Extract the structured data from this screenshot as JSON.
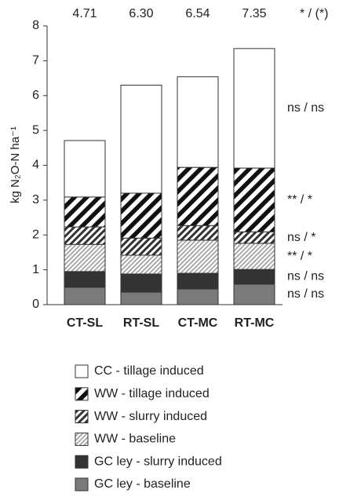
{
  "chart_data": {
    "type": "stacked-bar",
    "ylabel": "kg N₂O-N ha⁻¹",
    "categories": [
      "CT-SL",
      "RT-SL",
      "CT-MC",
      "RT-MC"
    ],
    "totals": [
      4.71,
      6.3,
      6.54,
      7.35
    ],
    "total_labels": [
      "4.71",
      "6.30",
      "6.54",
      "7.35"
    ],
    "total_significance": "* / (*)",
    "ylim": [
      0,
      8
    ],
    "yticks": [
      0,
      1,
      2,
      3,
      4,
      5,
      6,
      7,
      8
    ],
    "series": [
      {
        "name": "GC ley - baseline",
        "color": "#7a7a7a",
        "hatch": "none",
        "significance": "ns / ns",
        "values": [
          0.5,
          0.36,
          0.45,
          0.59
        ]
      },
      {
        "name": "GC ley - slurry induced",
        "color": "#333333",
        "hatch": "none",
        "significance": "ns / ns",
        "values": [
          0.45,
          0.52,
          0.45,
          0.42
        ]
      },
      {
        "name": "WW - baseline",
        "color": "#9a9a9a",
        "hatch": "fine",
        "significance": "** / *",
        "values": [
          0.78,
          0.54,
          0.95,
          0.75
        ]
      },
      {
        "name": "WW - slurry induced",
        "color": "#333333",
        "hatch": "dense",
        "significance": "ns / *",
        "values": [
          0.5,
          0.49,
          0.42,
          0.33
        ]
      },
      {
        "name": "WW - tillage induced",
        "color": "#111111",
        "hatch": "wide",
        "significance": "** / *",
        "values": [
          0.86,
          1.29,
          1.67,
          1.83
        ]
      },
      {
        "name": "CC - tillage induced",
        "color": "#ffffff",
        "hatch": "none",
        "significance": "ns / ns",
        "values": [
          1.62,
          3.1,
          2.6,
          3.43
        ]
      }
    ]
  }
}
